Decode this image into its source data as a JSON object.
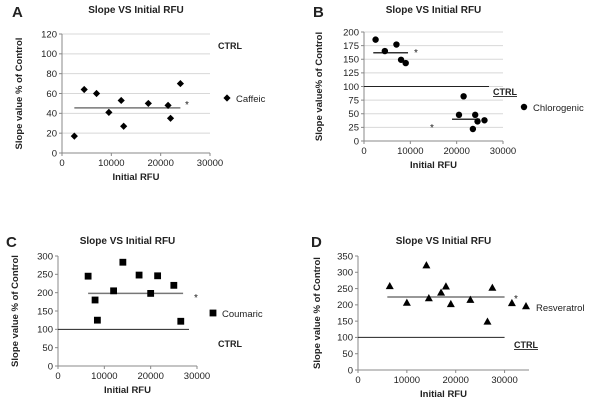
{
  "chart_data": [
    {
      "type": "scatter",
      "panel": "A",
      "title": "Slope  VS Initial RFU",
      "xlabel": "Initial RFU",
      "ylabel": "Slope value % of Control",
      "xlim": [
        0,
        30000
      ],
      "ylim": [
        0,
        120
      ],
      "xticks": [
        0,
        10000,
        20000,
        30000
      ],
      "yticks": [
        0,
        20,
        40,
        60,
        80,
        100,
        120
      ],
      "grid": "horizontal",
      "marker": "diamond",
      "series": [
        {
          "name": "Caffeic",
          "x": [
            2500,
            4500,
            7000,
            9500,
            12000,
            12500,
            17500,
            21500,
            22000,
            24000
          ],
          "y": [
            17,
            64,
            60,
            41,
            53,
            27,
            50,
            48,
            35,
            70
          ]
        }
      ],
      "mean_line": {
        "x": [
          2500,
          24000
        ],
        "y": 45.5
      },
      "reference": {
        "label": "CTRL",
        "y": 100
      },
      "annotation": "*"
    },
    {
      "type": "scatter",
      "panel": "B",
      "title": "Slope VS Initial RFU",
      "xlabel": "Initial RFU",
      "ylabel": "Slope value% of Control",
      "xlim": [
        0,
        30000
      ],
      "ylim": [
        0,
        200
      ],
      "xticks": [
        0,
        10000,
        20000,
        30000
      ],
      "yticks": [
        0,
        25,
        50,
        75,
        100,
        125,
        150,
        175,
        200
      ],
      "grid": "horizontal",
      "marker": "circle",
      "series": [
        {
          "name": "Chlorogenic",
          "x": [
            2500,
            4500,
            7000,
            8000,
            9000,
            20500,
            21500,
            23500,
            24000,
            24500,
            26000
          ],
          "y": [
            186,
            165,
            177,
            149,
            143,
            48,
            82,
            22,
            48,
            36,
            38
          ]
        }
      ],
      "mean_lines": [
        {
          "x": [
            2000,
            9500
          ],
          "y": 162
        },
        {
          "x": [
            19000,
            25000
          ],
          "y": 40
        }
      ],
      "reference": {
        "label": "CTRL",
        "y": 100
      },
      "annotations": [
        "*",
        "*"
      ]
    },
    {
      "type": "scatter",
      "panel": "C",
      "title": "Slope VS Initial RFU",
      "xlabel": "Initial RFU",
      "ylabel": "Slope value % of Control",
      "xlim": [
        0,
        30000
      ],
      "ylim": [
        0,
        300
      ],
      "xticks": [
        0,
        10000,
        20000,
        30000
      ],
      "yticks": [
        0,
        50,
        100,
        150,
        200,
        250,
        300
      ],
      "grid": "none",
      "marker": "square",
      "series": [
        {
          "name": "Coumaric",
          "x": [
            6500,
            8000,
            8500,
            12000,
            14000,
            17500,
            20000,
            21500,
            25000,
            26500
          ],
          "y": [
            245,
            180,
            125,
            205,
            283,
            248,
            198,
            246,
            220,
            122
          ]
        }
      ],
      "mean_line": {
        "x": [
          6500,
          27000
        ],
        "y": 198
      },
      "reference": {
        "label": "CTRL",
        "y": 100
      },
      "annotation": "*"
    },
    {
      "type": "scatter",
      "panel": "D",
      "title": "Slope VS Initial RFU",
      "xlabel": "Initial RFU",
      "ylabel": "Slope value % of Control",
      "xlim": [
        0,
        35000
      ],
      "ylim": [
        0,
        350
      ],
      "xticks": [
        0,
        10000,
        20000,
        30000
      ],
      "yticks": [
        0,
        50,
        100,
        150,
        200,
        250,
        300,
        350
      ],
      "grid": "none",
      "marker": "triangle",
      "series": [
        {
          "name": "Resveratrol",
          "x": [
            6500,
            10000,
            14000,
            14500,
            17000,
            18000,
            19000,
            23000,
            26500,
            27500,
            31500
          ],
          "y": [
            258,
            207,
            322,
            221,
            238,
            257,
            203,
            216,
            149,
            253,
            206
          ]
        }
      ],
      "mean_line": {
        "x": [
          6000,
          30000
        ],
        "y": 224
      },
      "reference": {
        "label": "CTRL",
        "y": 100
      },
      "annotation": "*"
    }
  ]
}
